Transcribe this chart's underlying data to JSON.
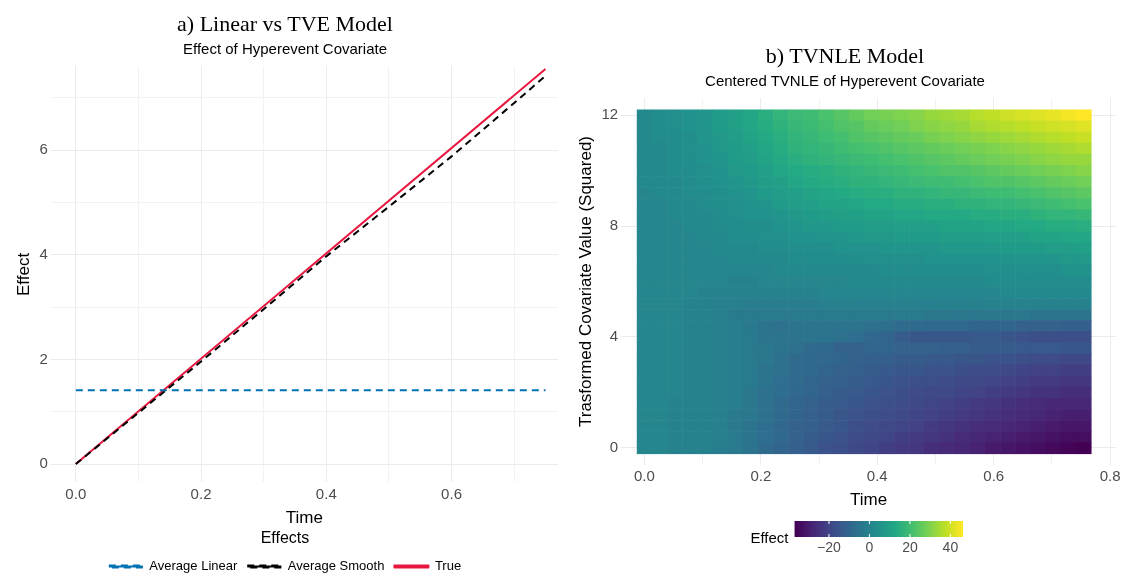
{
  "chart_data": [
    {
      "type": "line",
      "title": "a) Linear vs TVE Model",
      "subtitle": "Effect of Hyperevent Covariate",
      "xlabel": "Time",
      "ylabel": "Effect",
      "legend_title": "Effects",
      "legend": "bottom",
      "grid": true,
      "xlim": [
        -0.04,
        0.77
      ],
      "xticks": [
        {
          "value": 0,
          "label": "0.0"
        },
        {
          "value": 0.1,
          "label": null
        },
        {
          "value": 0.2,
          "label": "0.2"
        },
        {
          "value": 0.3,
          "label": null
        },
        {
          "value": 0.4,
          "label": "0.4"
        },
        {
          "value": 0.5,
          "label": null
        },
        {
          "value": 0.6,
          "label": "0.6"
        },
        {
          "value": 0.7,
          "label": null
        }
      ],
      "ylim": [
        -0.35,
        7.6
      ],
      "yticks": [
        0,
        {
          "value": 1,
          "label": null
        },
        2,
        {
          "value": 3,
          "label": null
        },
        4,
        {
          "value": 5,
          "label": null
        },
        6,
        {
          "value": 7,
          "label": null
        }
      ],
      "series": [
        {
          "name": "Average Linear",
          "color": "#0072b2",
          "line_style": "dashed",
          "x": [
            0,
            0.75
          ],
          "values": [
            1.41,
            1.41
          ]
        },
        {
          "name": "Average Smooth",
          "color": "#000000",
          "line_style": "dashed",
          "x": [
            0,
            0.1,
            0.2,
            0.3,
            0.4,
            0.5,
            0.6,
            0.7,
            0.75
          ],
          "values": [
            0,
            0.98,
            1.96,
            2.96,
            3.97,
            4.92,
            5.88,
            6.9,
            7.42
          ]
        },
        {
          "name": "True",
          "color": "#e8173f",
          "line_style": "solid",
          "x": [
            0,
            0.75
          ],
          "values": [
            0,
            7.55
          ]
        }
      ]
    },
    {
      "type": "heatmap",
      "title": "b) TVNLE Model",
      "subtitle": "Centered TVNLE of Hyperevent Covariate",
      "xlabel": "Time",
      "ylabel": "Trasformed Covariate Value (Squared)",
      "clabel": "Effect",
      "grid": true,
      "x": [
        0,
        0.026,
        0.052,
        0.078,
        0.104,
        0.13,
        0.156,
        0.182,
        0.208,
        0.234,
        0.26,
        0.286,
        0.312,
        0.338,
        0.364,
        0.39,
        0.416,
        0.442,
        0.468,
        0.494,
        0.52,
        0.546,
        0.572,
        0.598,
        0.624,
        0.65,
        0.676,
        0.702,
        0.728,
        0.754
      ],
      "y_categories": [
        "12",
        null,
        null,
        null,
        null,
        null,
        null,
        null,
        null,
        null,
        "8",
        null,
        null,
        null,
        null,
        null,
        null,
        null,
        null,
        null,
        "4",
        null,
        null,
        null,
        null,
        null,
        null,
        null,
        null,
        null,
        "0"
      ],
      "xlim": [
        -0.04,
        0.81
      ],
      "xticks": [
        {
          "value": 0,
          "label": "0.0"
        },
        {
          "value": 0.1,
          "label": null
        },
        {
          "value": 0.2,
          "label": "0.2"
        },
        {
          "value": 0.3,
          "label": null
        },
        {
          "value": 0.4,
          "label": "0.4"
        },
        {
          "value": 0.5,
          "label": null
        },
        {
          "value": 0.6,
          "label": "0.6"
        },
        {
          "value": 0.7,
          "label": null
        },
        {
          "value": 0.8,
          "label": "0.8"
        }
      ],
      "clim": [
        -37,
        46
      ],
      "cticks": [
        {
          "value": -20,
          "label": "−20"
        },
        0,
        20,
        40
      ],
      "cells": [
        [
          2,
          3,
          4,
          5,
          6,
          8,
          10,
          12,
          15,
          17,
          19,
          20,
          22,
          24,
          26,
          28,
          29,
          30,
          31,
          33,
          34,
          35,
          37,
          38,
          40,
          41,
          42,
          43,
          45,
          46
        ],
        [
          2,
          3,
          4,
          5,
          6,
          8,
          10,
          12,
          14,
          16,
          18,
          19,
          21,
          23,
          24,
          26,
          27,
          28,
          30,
          31,
          32,
          33,
          35,
          36,
          37,
          38,
          39,
          40,
          41,
          42
        ],
        [
          2,
          3,
          3,
          4,
          6,
          7,
          9,
          11,
          13,
          15,
          17,
          18,
          20,
          21,
          23,
          24,
          25,
          26,
          27,
          29,
          30,
          31,
          32,
          33,
          34,
          35,
          36,
          37,
          38,
          39
        ],
        [
          2,
          2,
          3,
          4,
          5,
          7,
          8,
          10,
          12,
          14,
          16,
          17,
          18,
          20,
          21,
          22,
          23,
          24,
          25,
          26,
          27,
          28,
          29,
          30,
          31,
          32,
          33,
          34,
          35,
          36
        ],
        [
          2,
          2,
          3,
          4,
          5,
          6,
          8,
          9,
          11,
          13,
          15,
          16,
          17,
          18,
          19,
          20,
          21,
          22,
          23,
          24,
          25,
          26,
          27,
          28,
          29,
          30,
          31,
          32,
          33,
          33
        ],
        [
          2,
          2,
          3,
          3,
          4,
          5,
          7,
          8,
          10,
          12,
          13,
          14,
          15,
          16,
          17,
          18,
          19,
          20,
          21,
          22,
          23,
          23,
          24,
          25,
          26,
          27,
          28,
          29,
          30,
          31
        ],
        [
          2,
          2,
          2,
          3,
          4,
          5,
          6,
          7,
          9,
          10,
          12,
          13,
          14,
          15,
          16,
          16,
          17,
          18,
          19,
          20,
          20,
          21,
          22,
          23,
          23,
          24,
          25,
          26,
          27,
          28
        ],
        [
          1,
          2,
          2,
          3,
          3,
          4,
          5,
          6,
          8,
          9,
          10,
          11,
          12,
          13,
          14,
          15,
          15,
          16,
          16,
          17,
          18,
          18,
          19,
          20,
          20,
          21,
          22,
          23,
          24,
          25
        ],
        [
          1,
          1,
          2,
          2,
          3,
          4,
          4,
          5,
          6,
          8,
          9,
          10,
          11,
          11,
          12,
          13,
          13,
          14,
          14,
          15,
          15,
          16,
          16,
          17,
          17,
          18,
          19,
          20,
          21,
          22
        ],
        [
          1,
          1,
          2,
          2,
          2,
          3,
          4,
          5,
          5,
          6,
          7,
          8,
          9,
          10,
          10,
          11,
          11,
          12,
          12,
          13,
          13,
          13,
          14,
          14,
          15,
          15,
          16,
          17,
          17,
          18
        ],
        [
          1,
          1,
          1,
          2,
          2,
          3,
          3,
          4,
          4,
          5,
          6,
          7,
          7,
          8,
          8,
          9,
          9,
          10,
          10,
          10,
          11,
          11,
          11,
          12,
          12,
          13,
          13,
          14,
          14,
          15
        ],
        [
          1,
          1,
          1,
          1,
          2,
          2,
          3,
          3,
          4,
          4,
          5,
          5,
          6,
          6,
          7,
          7,
          7,
          8,
          8,
          8,
          9,
          9,
          9,
          10,
          10,
          10,
          11,
          11,
          12,
          12
        ],
        [
          1,
          1,
          1,
          1,
          1,
          2,
          2,
          2,
          3,
          3,
          4,
          4,
          4,
          5,
          5,
          5,
          6,
          6,
          6,
          6,
          7,
          7,
          7,
          7,
          8,
          8,
          8,
          9,
          9,
          10
        ],
        [
          1,
          1,
          1,
          1,
          1,
          1,
          2,
          2,
          2,
          2,
          3,
          3,
          3,
          3,
          4,
          4,
          4,
          4,
          4,
          5,
          5,
          5,
          5,
          5,
          6,
          6,
          6,
          6,
          7,
          7
        ],
        [
          1,
          1,
          1,
          1,
          1,
          1,
          1,
          1,
          1,
          2,
          2,
          2,
          2,
          2,
          2,
          2,
          3,
          3,
          3,
          3,
          3,
          3,
          3,
          4,
          4,
          4,
          4,
          4,
          5,
          5
        ],
        [
          1,
          1,
          1,
          1,
          1,
          1,
          0,
          0,
          1,
          1,
          1,
          1,
          1,
          1,
          2,
          2,
          2,
          2,
          2,
          2,
          2,
          2,
          2,
          3,
          3,
          3,
          3,
          3,
          3,
          3
        ],
        [
          1,
          1,
          1,
          1,
          0,
          0,
          0,
          0,
          0,
          0,
          0,
          0,
          1,
          1,
          1,
          1,
          1,
          1,
          1,
          1,
          1,
          1,
          1,
          1,
          2,
          2,
          2,
          2,
          2,
          2
        ],
        [
          1,
          1,
          1,
          0,
          0,
          -1,
          -1,
          -2,
          -2,
          -2,
          -2,
          -2,
          -1,
          -1,
          -1,
          -1,
          -1,
          -1,
          -1,
          -1,
          -1,
          -1,
          -1,
          0,
          0,
          0,
          0,
          0,
          0,
          0
        ],
        [
          1,
          1,
          1,
          0,
          0,
          -1,
          -3,
          -3,
          -3,
          -3,
          -3,
          -3,
          -3,
          -3,
          -3,
          -3,
          -3,
          -3,
          -3,
          -4,
          -4,
          -4,
          -4,
          -4,
          -4,
          -4,
          -5,
          -5,
          -5,
          -5
        ],
        [
          1,
          1,
          1,
          0,
          0,
          -1,
          -2,
          -3,
          -5,
          -6,
          -5,
          -5,
          -5,
          -5,
          -5,
          -6,
          -7,
          -8,
          -8,
          -9,
          -9,
          -9,
          -10,
          -10,
          -10,
          -11,
          -11,
          -11,
          -12,
          -12
        ],
        [
          1,
          1,
          1,
          0,
          0,
          -1,
          -2,
          -3,
          -5,
          -5,
          -5,
          -5,
          -5,
          -6,
          -7,
          -9,
          -10,
          -13,
          -15,
          -15,
          -15,
          -15,
          -14,
          -14,
          -15,
          -16,
          -17,
          -17,
          -17,
          -17
        ],
        [
          1,
          1,
          1,
          0,
          0,
          -1,
          -2,
          -3,
          -4,
          -5,
          -6,
          -8,
          -9,
          -11,
          -11,
          -10,
          -10,
          -11,
          -11,
          -11,
          -12,
          -12,
          -13,
          -13,
          -13,
          -14,
          -14,
          -14,
          -15,
          -15
        ],
        [
          1,
          1,
          1,
          0,
          0,
          -1,
          -2,
          -3,
          -4,
          -6,
          -8,
          -9,
          -9,
          -10,
          -11,
          -12,
          -12,
          -13,
          -13,
          -14,
          -14,
          -15,
          -15,
          -16,
          -16,
          -17,
          -18,
          -18,
          -19,
          -19
        ],
        [
          1,
          1,
          1,
          0,
          0,
          -1,
          -2,
          -3,
          -5,
          -6,
          -8,
          -9,
          -10,
          -11,
          -12,
          -13,
          -14,
          -15,
          -15,
          -16,
          -16,
          -17,
          -18,
          -18,
          -19,
          -20,
          -21,
          -21,
          -22,
          -22
        ],
        [
          1,
          1,
          1,
          0,
          0,
          -1,
          -2,
          -3,
          -5,
          -7,
          -8,
          -10,
          -11,
          -12,
          -13,
          -14,
          -15,
          -16,
          -17,
          -17,
          -18,
          -19,
          -19,
          -20,
          -21,
          -22,
          -23,
          -23,
          -24,
          -24
        ],
        [
          1,
          1,
          1,
          0,
          0,
          -1,
          -2,
          -4,
          -6,
          -7,
          -9,
          -10,
          -12,
          -13,
          -14,
          -15,
          -16,
          -17,
          -18,
          -19,
          -19,
          -20,
          -21,
          -22,
          -23,
          -24,
          -25,
          -25,
          -26,
          -26
        ],
        [
          1,
          1,
          0,
          0,
          0,
          -1,
          -2,
          -4,
          -6,
          -8,
          -10,
          -11,
          -13,
          -14,
          -15,
          -16,
          -17,
          -18,
          -19,
          -20,
          -21,
          -22,
          -23,
          -24,
          -25,
          -26,
          -27,
          -28,
          -28,
          -28
        ],
        [
          1,
          1,
          0,
          0,
          0,
          -1,
          -3,
          -4,
          -6,
          -8,
          -10,
          -12,
          -13,
          -15,
          -16,
          -17,
          -18,
          -19,
          -20,
          -21,
          -22,
          -23,
          -24,
          -25,
          -26,
          -27,
          -28,
          -29,
          -30,
          -30
        ],
        [
          1,
          1,
          0,
          0,
          0,
          -1,
          -3,
          -5,
          -7,
          -9,
          -11,
          -12,
          -14,
          -15,
          -17,
          -18,
          -19,
          -20,
          -21,
          -23,
          -24,
          -25,
          -26,
          -27,
          -28,
          -29,
          -30,
          -31,
          -32,
          -32
        ],
        [
          1,
          1,
          0,
          0,
          0,
          -1,
          -3,
          -5,
          -7,
          -9,
          -11,
          -13,
          -15,
          -16,
          -18,
          -19,
          -20,
          -22,
          -23,
          -24,
          -25,
          -27,
          -28,
          -29,
          -30,
          -31,
          -32,
          -33,
          -34,
          -34
        ],
        [
          1,
          1,
          0,
          0,
          0,
          -2,
          -3,
          -5,
          -8,
          -10,
          -12,
          -14,
          -16,
          -17,
          -19,
          -20,
          -22,
          -23,
          -24,
          -26,
          -27,
          -28,
          -29,
          -31,
          -32,
          -33,
          -34,
          -35,
          -36,
          -37
        ]
      ]
    }
  ]
}
